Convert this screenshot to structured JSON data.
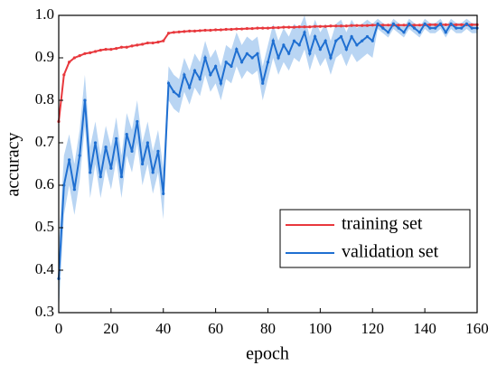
{
  "chart_data": {
    "type": "line",
    "xlabel": "epoch",
    "ylabel": "accuracy",
    "x": [
      0,
      2,
      4,
      6,
      8,
      10,
      12,
      14,
      16,
      18,
      20,
      22,
      24,
      26,
      28,
      30,
      32,
      34,
      36,
      38,
      40,
      42,
      44,
      46,
      48,
      50,
      52,
      54,
      56,
      58,
      60,
      62,
      64,
      66,
      68,
      70,
      72,
      74,
      76,
      78,
      80,
      82,
      84,
      86,
      88,
      90,
      92,
      94,
      96,
      98,
      100,
      102,
      104,
      106,
      108,
      110,
      112,
      114,
      116,
      118,
      120,
      122,
      124,
      126,
      128,
      130,
      132,
      134,
      136,
      138,
      140,
      142,
      144,
      146,
      148,
      150,
      152,
      154,
      156,
      158,
      160
    ],
    "series": [
      {
        "name": "training set",
        "color": "#e8383d",
        "values": [
          0.75,
          0.86,
          0.89,
          0.9,
          0.905,
          0.91,
          0.912,
          0.915,
          0.918,
          0.92,
          0.92,
          0.922,
          0.925,
          0.925,
          0.928,
          0.93,
          0.932,
          0.935,
          0.935,
          0.937,
          0.94,
          0.958,
          0.96,
          0.961,
          0.962,
          0.963,
          0.963,
          0.964,
          0.965,
          0.965,
          0.966,
          0.966,
          0.967,
          0.967,
          0.968,
          0.968,
          0.969,
          0.969,
          0.97,
          0.97,
          0.97,
          0.971,
          0.971,
          0.972,
          0.972,
          0.972,
          0.973,
          0.973,
          0.973,
          0.974,
          0.974,
          0.974,
          0.975,
          0.975,
          0.975,
          0.975,
          0.976,
          0.976,
          0.976,
          0.976,
          0.977,
          0.977,
          0.977,
          0.977,
          0.977,
          0.977,
          0.977,
          0.977,
          0.977,
          0.977,
          0.978,
          0.978,
          0.978,
          0.978,
          0.978,
          0.978,
          0.978,
          0.978,
          0.978,
          0.978,
          0.978
        ]
      },
      {
        "name": "validation set",
        "color": "#1f6fd1",
        "band_color": "#b9d5f3",
        "values": [
          0.38,
          0.6,
          0.66,
          0.59,
          0.67,
          0.8,
          0.63,
          0.7,
          0.62,
          0.69,
          0.64,
          0.71,
          0.62,
          0.72,
          0.68,
          0.75,
          0.65,
          0.7,
          0.63,
          0.68,
          0.58,
          0.84,
          0.82,
          0.81,
          0.86,
          0.83,
          0.87,
          0.85,
          0.9,
          0.86,
          0.88,
          0.84,
          0.89,
          0.88,
          0.92,
          0.89,
          0.91,
          0.9,
          0.91,
          0.84,
          0.89,
          0.94,
          0.9,
          0.93,
          0.91,
          0.94,
          0.93,
          0.96,
          0.91,
          0.95,
          0.92,
          0.94,
          0.9,
          0.94,
          0.95,
          0.92,
          0.95,
          0.93,
          0.94,
          0.95,
          0.94,
          0.98,
          0.97,
          0.96,
          0.98,
          0.97,
          0.96,
          0.98,
          0.97,
          0.96,
          0.98,
          0.97,
          0.97,
          0.98,
          0.96,
          0.98,
          0.97,
          0.97,
          0.98,
          0.97,
          0.97
        ],
        "errors": [
          0.08,
          0.07,
          0.06,
          0.06,
          0.06,
          0.06,
          0.06,
          0.05,
          0.05,
          0.05,
          0.05,
          0.05,
          0.05,
          0.05,
          0.05,
          0.05,
          0.05,
          0.05,
          0.05,
          0.05,
          0.06,
          0.04,
          0.04,
          0.04,
          0.04,
          0.04,
          0.04,
          0.04,
          0.04,
          0.04,
          0.04,
          0.04,
          0.04,
          0.04,
          0.04,
          0.04,
          0.04,
          0.04,
          0.04,
          0.04,
          0.04,
          0.04,
          0.04,
          0.04,
          0.04,
          0.04,
          0.04,
          0.04,
          0.04,
          0.04,
          0.04,
          0.04,
          0.04,
          0.04,
          0.04,
          0.04,
          0.04,
          0.04,
          0.04,
          0.04,
          0.04,
          0.012,
          0.012,
          0.012,
          0.012,
          0.012,
          0.012,
          0.012,
          0.012,
          0.012,
          0.012,
          0.012,
          0.012,
          0.012,
          0.012,
          0.012,
          0.012,
          0.012,
          0.012,
          0.012,
          0.012
        ]
      }
    ],
    "xlim": [
      0,
      160
    ],
    "xticks": [
      0,
      20,
      40,
      60,
      80,
      100,
      120,
      140,
      160
    ],
    "ylim": [
      0.3,
      1
    ],
    "yticks": [
      0.3,
      0.4,
      0.5,
      0.6,
      0.7,
      0.8,
      0.9,
      {
        "value": 1,
        "label": "1.0"
      }
    ],
    "grid": false,
    "legend": "lower right"
  }
}
